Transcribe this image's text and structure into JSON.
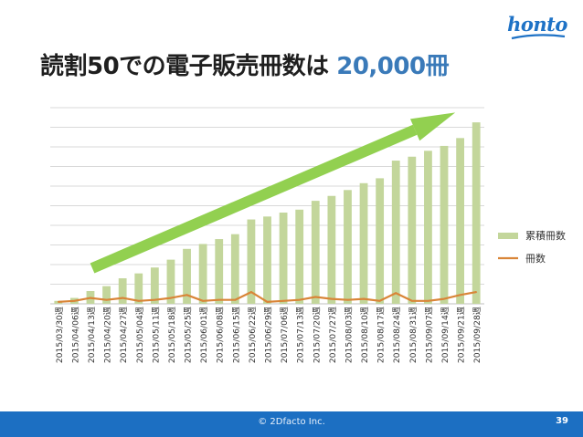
{
  "logo": {
    "text": "honto"
  },
  "header": {
    "title_main": "読割50での電子販売冊数は",
    "title_highlight": "20,000冊"
  },
  "footer": {
    "copyright": "© 2Dfacto Inc.",
    "page_number": "39"
  },
  "colors": {
    "bar": "#c3d69b",
    "line": "#d98538",
    "arrow": "#92d050",
    "highlight": "#3a7ab9",
    "footer": "#1c6fc2"
  },
  "chart_data": {
    "type": "bar",
    "categories": [
      "2015/03/30週",
      "2015/04/06週",
      "2015/04/13週",
      "2015/04/20週",
      "2015/04/27週",
      "2015/05/04週",
      "2015/05/11週",
      "2015/05/18週",
      "2015/05/25週",
      "2015/06/01週",
      "2015/06/08週",
      "2015/06/15週",
      "2015/06/22週",
      "2015/06/29週",
      "2015/07/06週",
      "2015/07/13週",
      "2015/07/20週",
      "2015/07/27週",
      "2015/08/03週",
      "2015/08/10週",
      "2015/08/17週",
      "2015/08/24週",
      "2015/08/31週",
      "2015/09/07週",
      "2015/09/14週",
      "2015/09/21週",
      "2015/09/28週"
    ],
    "series": [
      {
        "name": "累積冊数",
        "type": "bar",
        "values": [
          0.3,
          0.6,
          1.3,
          1.8,
          2.6,
          3.1,
          3.7,
          4.5,
          5.6,
          6.1,
          6.6,
          7.1,
          8.6,
          8.9,
          9.3,
          9.6,
          10.5,
          11.0,
          11.6,
          12.3,
          12.8,
          14.6,
          15.0,
          15.6,
          16.1,
          16.9,
          18.5
        ]
      },
      {
        "name": "冊数",
        "type": "line",
        "values": [
          0.2,
          0.3,
          0.6,
          0.4,
          0.6,
          0.3,
          0.4,
          0.6,
          0.9,
          0.3,
          0.4,
          0.4,
          1.2,
          0.2,
          0.3,
          0.4,
          0.7,
          0.5,
          0.4,
          0.5,
          0.3,
          1.1,
          0.3,
          0.3,
          0.5,
          0.9,
          1.2
        ]
      }
    ],
    "ylim": [
      0,
      20
    ],
    "grid": true,
    "legend_position": "right",
    "annotation": "upward-arrow"
  }
}
